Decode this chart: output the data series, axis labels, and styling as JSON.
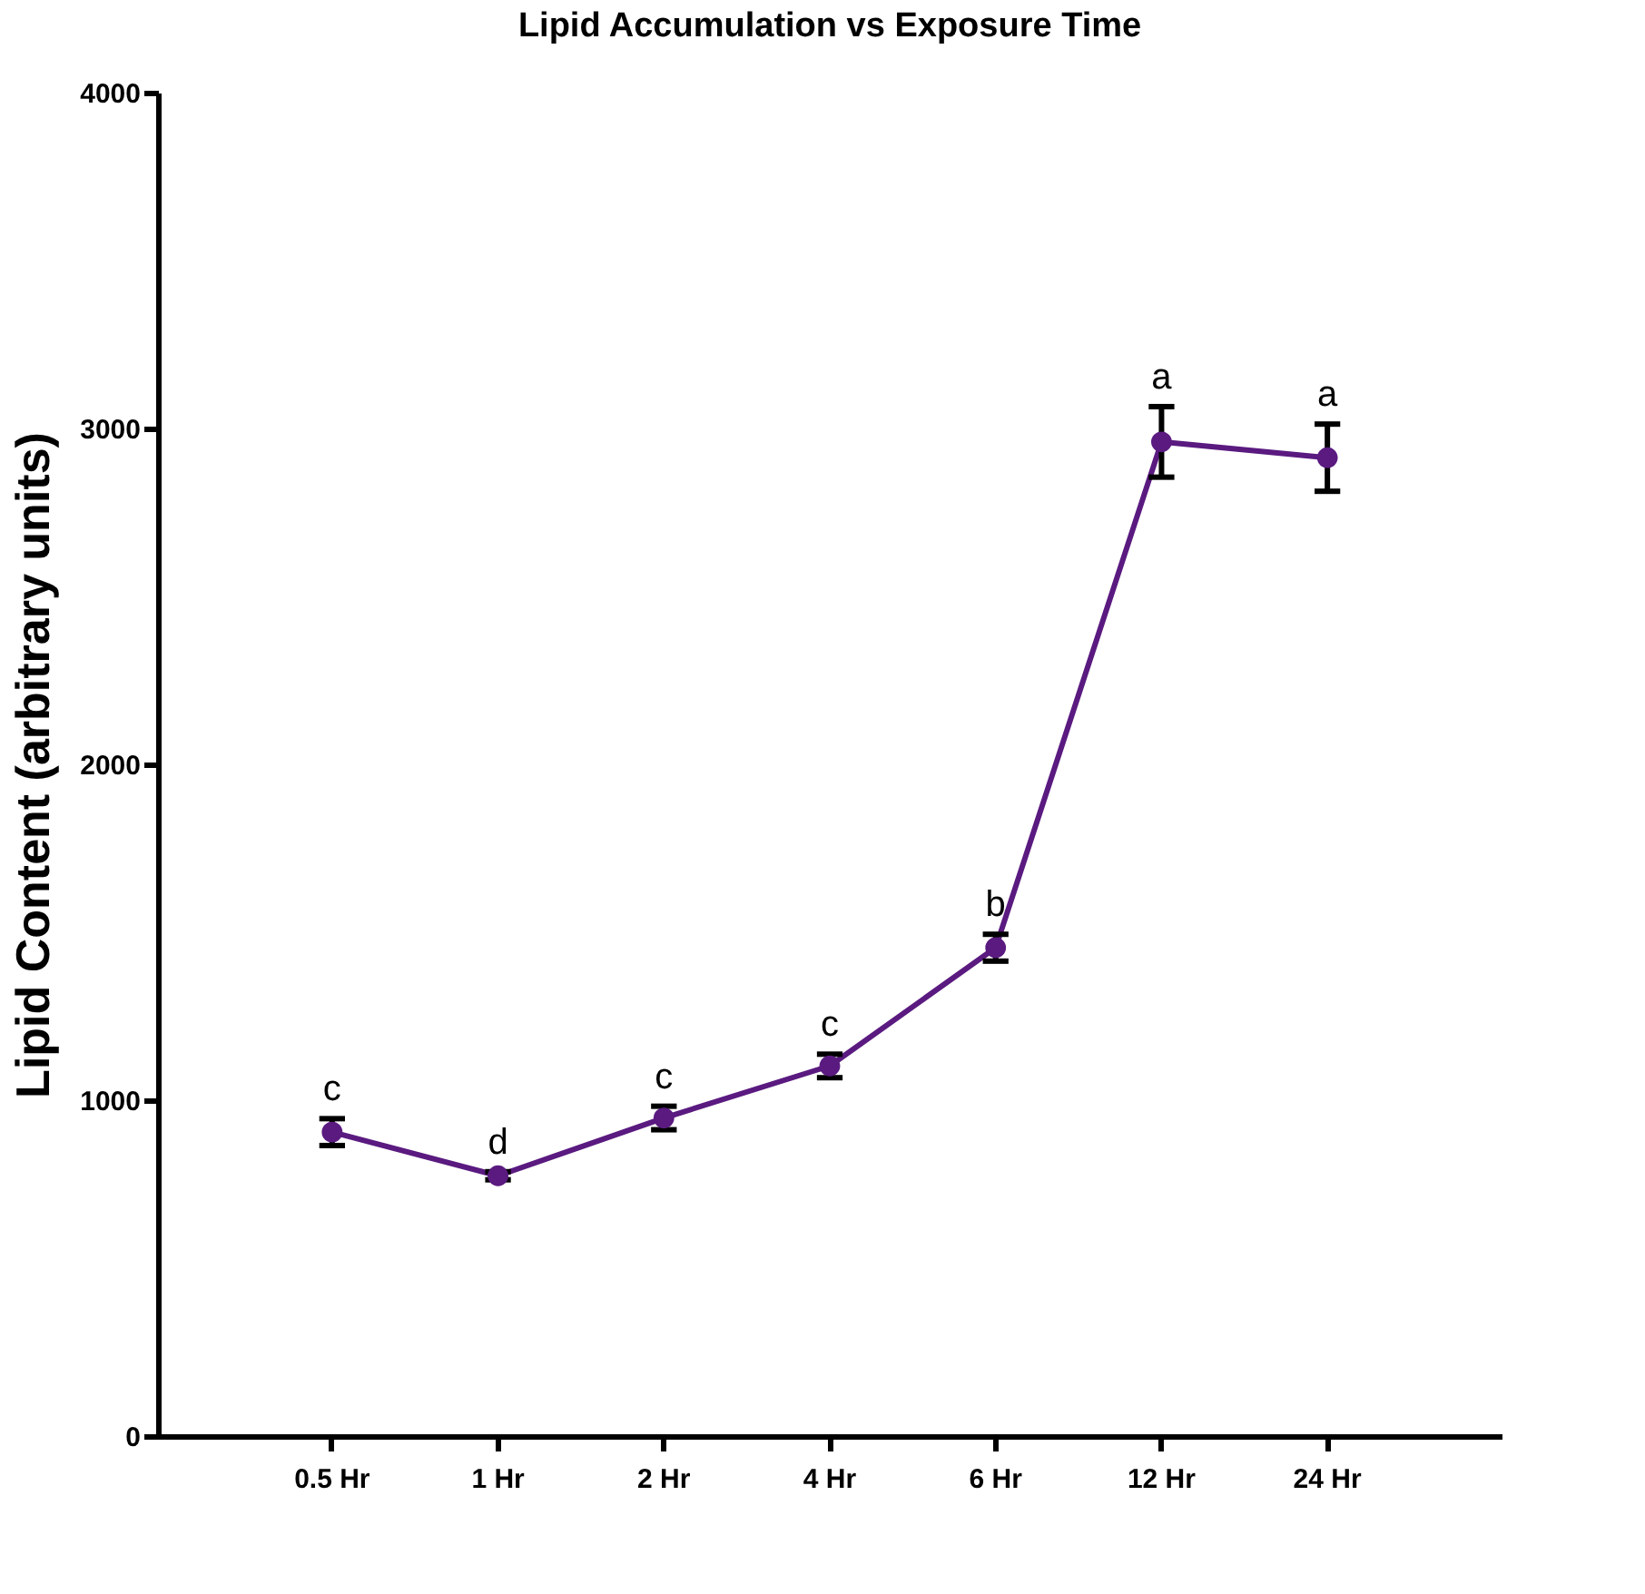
{
  "chart_data": {
    "type": "line",
    "title": "Lipid Accumulation vs Exposure Time",
    "ylabel": "Lipid Content (arbitrary units)",
    "categories": [
      "0.5 Hr",
      "1 Hr",
      "2 Hr",
      "4 Hr",
      "6 Hr",
      "12 Hr",
      "24 Hr"
    ],
    "series": [
      {
        "color": "#5a1a80",
        "values": [
          905,
          775,
          947,
          1102,
          1454,
          2960,
          2913
        ],
        "errors": [
          40,
          12,
          35,
          35,
          40,
          105,
          100
        ]
      }
    ],
    "ylim": [
      0,
      4000
    ],
    "yticks": [
      0,
      1000,
      2000,
      3000,
      4000
    ],
    "grid": false,
    "marker": "circle",
    "line_style": "solid",
    "annotations": [
      {
        "text": "c",
        "x": "0.5 Hr",
        "y": 905
      },
      {
        "text": "d",
        "x": "1 Hr",
        "y": 775
      },
      {
        "text": "c",
        "x": "2 Hr",
        "y": 947
      },
      {
        "text": "c",
        "x": "4 Hr",
        "y": 1102
      },
      {
        "text": "b",
        "x": "6 Hr",
        "y": 1454
      },
      {
        "text": "a",
        "x": "12 Hr",
        "y": 2960
      },
      {
        "text": "a",
        "x": "24 Hr",
        "y": 2913
      }
    ]
  }
}
